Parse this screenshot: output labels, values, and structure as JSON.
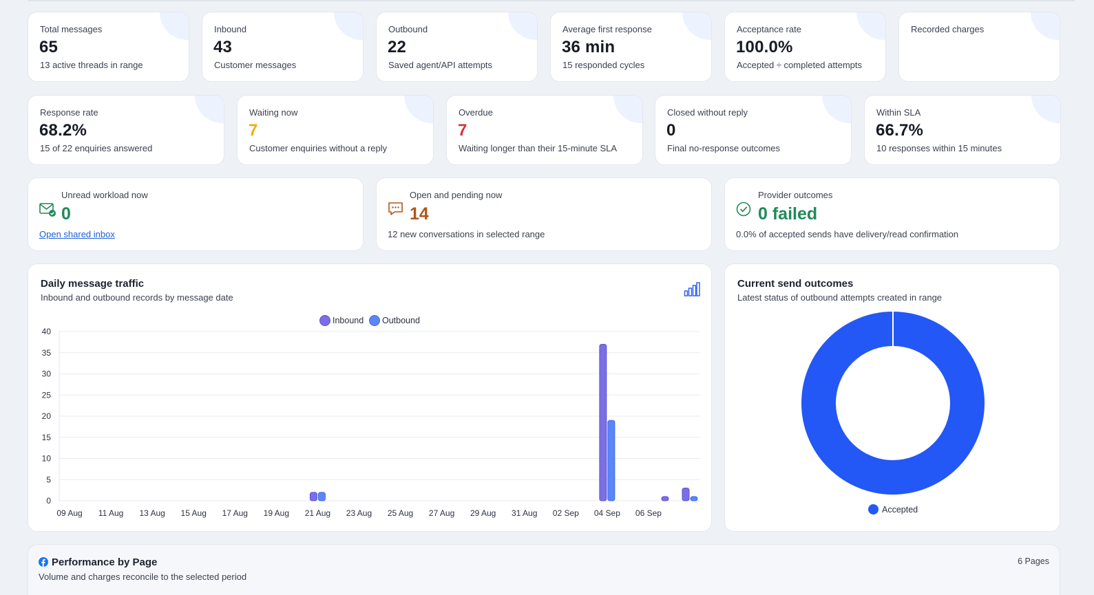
{
  "kpis_row1": [
    {
      "label": "Total messages",
      "value": "65",
      "sub": "13 active threads in range"
    },
    {
      "label": "Inbound",
      "value": "43",
      "sub": "Customer messages"
    },
    {
      "label": "Outbound",
      "value": "22",
      "sub": "Saved agent/API attempts"
    },
    {
      "label": "Average first response",
      "value": "36 min",
      "sub": "15 responded cycles"
    },
    {
      "label": "Acceptance rate",
      "value": "100.0%",
      "sub": "Accepted ÷ completed attempts"
    },
    {
      "label": "Recorded charges",
      "value": "",
      "sub": ""
    }
  ],
  "kpis_row2": [
    {
      "label": "Response rate",
      "value": "68.2%",
      "sub": "15 of 22 enquiries answered"
    },
    {
      "label": "Waiting now",
      "value": "7",
      "sub": "Customer enquiries without a reply"
    },
    {
      "label": "Overdue",
      "value": "7",
      "sub": "Waiting longer than their 15-minute SLA"
    },
    {
      "label": "Closed without reply",
      "value": "0",
      "sub": "Final no-response outcomes"
    },
    {
      "label": "Within SLA",
      "value": "66.7%",
      "sub": "10 responses within 15 minutes"
    }
  ],
  "workload": {
    "unread": {
      "label": "Unread workload now",
      "value": "0",
      "link": "Open shared inbox",
      "icon": "mail-check-icon"
    },
    "open": {
      "label": "Open and pending now",
      "value": "14",
      "sub": "12 new conversations in selected range",
      "icon": "chat-icon"
    },
    "provider": {
      "label": "Provider outcomes",
      "value": "0 failed",
      "sub": "0.0% of accepted sends have delivery/read confirmation",
      "icon": "check-circle-icon"
    }
  },
  "traffic": {
    "title": "Daily message traffic",
    "subtitle": "Inbound and outbound records by message date",
    "icon": "bar-chart-icon"
  },
  "outcomes": {
    "title": "Current send outcomes",
    "subtitle": "Latest status of outbound attempts created in range"
  },
  "performance": {
    "title": "Performance by Page",
    "subtitle": "Volume and charges reconcile to the selected period",
    "count": "6 Pages",
    "icon": "facebook-icon"
  },
  "colors": {
    "inbound": "#7b6ee6",
    "outbound": "#5b86f7",
    "accepted": "#2358f6"
  },
  "chart_data": [
    {
      "type": "bar",
      "title": "Daily message traffic",
      "x_tick_labels": [
        "09 Aug",
        "11 Aug",
        "13 Aug",
        "15 Aug",
        "17 Aug",
        "19 Aug",
        "21 Aug",
        "23 Aug",
        "25 Aug",
        "27 Aug",
        "29 Aug",
        "31 Aug",
        "02 Sep",
        "04 Sep",
        "06 Sep"
      ],
      "categories": [
        "09 Aug",
        "10 Aug",
        "11 Aug",
        "12 Aug",
        "13 Aug",
        "14 Aug",
        "15 Aug",
        "16 Aug",
        "17 Aug",
        "18 Aug",
        "19 Aug",
        "20 Aug",
        "21 Aug",
        "22 Aug",
        "23 Aug",
        "24 Aug",
        "25 Aug",
        "26 Aug",
        "27 Aug",
        "28 Aug",
        "29 Aug",
        "30 Aug",
        "31 Aug",
        "01 Sep",
        "02 Sep",
        "03 Sep",
        "04 Sep",
        "05 Sep",
        "06 Sep",
        "07 Sep",
        "08 Sep"
      ],
      "series": [
        {
          "name": "Inbound",
          "values": [
            0,
            0,
            0,
            0,
            0,
            0,
            0,
            0,
            0,
            0,
            0,
            0,
            2,
            0,
            0,
            0,
            0,
            0,
            0,
            0,
            0,
            0,
            0,
            0,
            0,
            0,
            37,
            0,
            0,
            1,
            3
          ]
        },
        {
          "name": "Outbound",
          "values": [
            0,
            0,
            0,
            0,
            0,
            0,
            0,
            0,
            0,
            0,
            0,
            0,
            2,
            0,
            0,
            0,
            0,
            0,
            0,
            0,
            0,
            0,
            0,
            0,
            0,
            0,
            19,
            0,
            0,
            0,
            1
          ]
        }
      ],
      "ylim": [
        0,
        40
      ],
      "yticks": [
        0,
        5,
        10,
        15,
        20,
        25,
        30,
        35,
        40
      ],
      "legend": "top-center",
      "grid": true
    },
    {
      "type": "pie",
      "title": "Current send outcomes",
      "categories": [
        "Accepted"
      ],
      "values": [
        22
      ],
      "legend": "bottom-center"
    }
  ]
}
